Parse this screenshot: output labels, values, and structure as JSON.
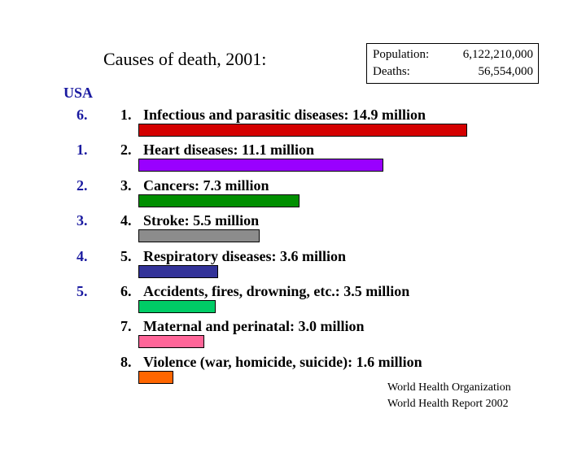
{
  "title": "Causes of death, 2001:",
  "population_box": {
    "population_label": "Population:",
    "population_value": "6,122,210,000",
    "deaths_label": "Deaths:",
    "deaths_value": "56,554,000"
  },
  "usa_label": "USA",
  "chart_data": {
    "type": "bar",
    "orientation": "horizontal",
    "unit": "million",
    "categories": [
      "Infectious and parasitic diseases",
      "Heart diseases",
      "Cancers",
      "Stroke",
      "Respiratory diseases",
      "Accidents, fires, drowning, etc.",
      "Maternal and perinatal",
      "Violence (war, homicide, suicide)"
    ],
    "values": [
      14.9,
      11.1,
      7.3,
      5.5,
      3.6,
      3.5,
      3.0,
      1.6
    ],
    "colors": [
      "#d40000",
      "#9900ff",
      "#008f00",
      "#8c8c8c",
      "#333399",
      "#00cc66",
      "#ff6699",
      "#ff6600"
    ],
    "xlim": [
      0,
      14.9
    ],
    "grid": false
  },
  "rows": [
    {
      "usa_rank": "6.",
      "number": "1.",
      "label": "Infectious and parasitic diseases: 14.9 million"
    },
    {
      "usa_rank": "1.",
      "number": "2.",
      "label": "Heart diseases: 11.1 million"
    },
    {
      "usa_rank": "2.",
      "number": "3.",
      "label": "Cancers: 7.3 million"
    },
    {
      "usa_rank": "3.",
      "number": "4.",
      "label": "Stroke: 5.5 million"
    },
    {
      "usa_rank": "4.",
      "number": "5.",
      "label": "Respiratory diseases: 3.6 million"
    },
    {
      "usa_rank": "5.",
      "number": "6.",
      "label": "Accidents, fires, drowning, etc.: 3.5 million"
    },
    {
      "usa_rank": "",
      "number": "7.",
      "label": "Maternal and perinatal: 3.0 million"
    },
    {
      "usa_rank": "",
      "number": "8.",
      "label": "Violence (war, homicide, suicide): 1.6 million"
    }
  ],
  "source": {
    "line1": "World Health Organization",
    "line2": "World Health Report 2002"
  }
}
